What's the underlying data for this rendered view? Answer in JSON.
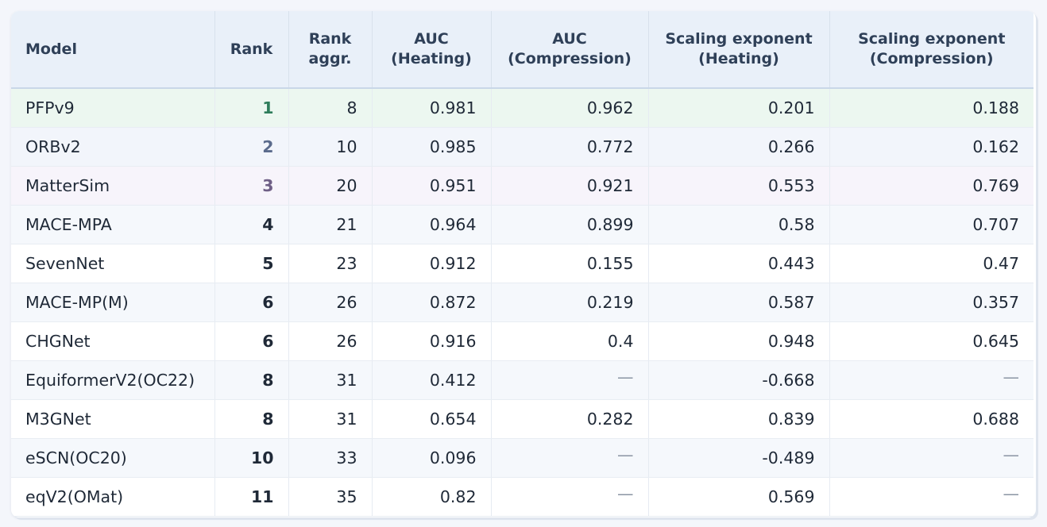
{
  "table": {
    "headers": [
      {
        "line1": "Model",
        "line2": ""
      },
      {
        "line1": "Rank",
        "line2": ""
      },
      {
        "line1": "Rank",
        "line2": "aggr."
      },
      {
        "line1": "AUC",
        "line2": "(Heating)"
      },
      {
        "line1": "AUC",
        "line2": "(Compression)"
      },
      {
        "line1": "Scaling exponent",
        "line2": "(Heating)"
      },
      {
        "line1": "Scaling exponent",
        "line2": "(Compression)"
      }
    ],
    "rows": [
      {
        "model": "PFPv9",
        "rank": "1",
        "rank_aggr": "8",
        "auc_heating": "0.981",
        "auc_compression": "0.962",
        "scaling_heating": "0.201",
        "scaling_compression": "0.188"
      },
      {
        "model": "ORBv2",
        "rank": "2",
        "rank_aggr": "10",
        "auc_heating": "0.985",
        "auc_compression": "0.772",
        "scaling_heating": "0.266",
        "scaling_compression": "0.162"
      },
      {
        "model": "MatterSim",
        "rank": "3",
        "rank_aggr": "20",
        "auc_heating": "0.951",
        "auc_compression": "0.921",
        "scaling_heating": "0.553",
        "scaling_compression": "0.769"
      },
      {
        "model": "MACE-MPA",
        "rank": "4",
        "rank_aggr": "21",
        "auc_heating": "0.964",
        "auc_compression": "0.899",
        "scaling_heating": "0.58",
        "scaling_compression": "0.707"
      },
      {
        "model": "SevenNet",
        "rank": "5",
        "rank_aggr": "23",
        "auc_heating": "0.912",
        "auc_compression": "0.155",
        "scaling_heating": "0.443",
        "scaling_compression": "0.47"
      },
      {
        "model": "MACE-MP(M)",
        "rank": "6",
        "rank_aggr": "26",
        "auc_heating": "0.872",
        "auc_compression": "0.219",
        "scaling_heating": "0.587",
        "scaling_compression": "0.357"
      },
      {
        "model": "CHGNet",
        "rank": "6",
        "rank_aggr": "26",
        "auc_heating": "0.916",
        "auc_compression": "0.4",
        "scaling_heating": "0.948",
        "scaling_compression": "0.645"
      },
      {
        "model": "EquiformerV2(OC22)",
        "rank": "8",
        "rank_aggr": "31",
        "auc_heating": "0.412",
        "auc_compression": "—",
        "scaling_heating": "-0.668",
        "scaling_compression": "—"
      },
      {
        "model": "M3GNet",
        "rank": "8",
        "rank_aggr": "31",
        "auc_heating": "0.654",
        "auc_compression": "0.282",
        "scaling_heating": "0.839",
        "scaling_compression": "0.688"
      },
      {
        "model": "eSCN(OC20)",
        "rank": "10",
        "rank_aggr": "33",
        "auc_heating": "0.096",
        "auc_compression": "—",
        "scaling_heating": "-0.489",
        "scaling_compression": "—"
      },
      {
        "model": "eqV2(OMat)",
        "rank": "11",
        "rank_aggr": "35",
        "auc_heating": "0.82",
        "auc_compression": "—",
        "scaling_heating": "0.569",
        "scaling_compression": "—"
      }
    ]
  },
  "colors": {
    "header_bg": "#e9f0f9",
    "header_text": "#2f4058",
    "rank1": "#2e7d5b",
    "rank2": "#5b6b8c",
    "rank3": "#6f5f86"
  }
}
